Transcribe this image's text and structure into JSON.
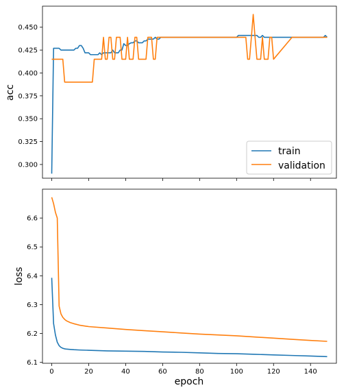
{
  "colors": {
    "train": "#1f77b4",
    "validation": "#ff7f0e"
  },
  "chart_data": [
    {
      "type": "line",
      "ylabel": "acc",
      "xlabel": "",
      "xlim": [
        -5,
        154
      ],
      "ylim": [
        0.285,
        0.473
      ],
      "yticks": [
        0.3,
        0.325,
        0.35,
        0.375,
        0.4,
        0.425,
        0.45
      ],
      "ytick_labels": [
        "0.300",
        "0.325",
        "0.350",
        "0.375",
        "0.400",
        "0.425",
        "0.450"
      ],
      "legend": {
        "position": "lower-right",
        "entries": [
          "train",
          "validation"
        ]
      },
      "series": [
        {
          "name": "train",
          "x": [
            0,
            1,
            2,
            3,
            4,
            5,
            6,
            7,
            8,
            9,
            10,
            11,
            12,
            13,
            14,
            15,
            16,
            17,
            18,
            19,
            20,
            21,
            22,
            23,
            24,
            25,
            26,
            27,
            28,
            29,
            30,
            31,
            32,
            33,
            34,
            35,
            36,
            37,
            38,
            39,
            40,
            41,
            42,
            43,
            44,
            45,
            46,
            47,
            48,
            49,
            50,
            51,
            52,
            53,
            54,
            55,
            56,
            57,
            58,
            59,
            60,
            70,
            80,
            90,
            100,
            101,
            102,
            103,
            104,
            105,
            106,
            107,
            108,
            109,
            110,
            111,
            112,
            113,
            114,
            115,
            116,
            117,
            118,
            119,
            120,
            130,
            140,
            147,
            148,
            149
          ],
          "y": [
            0.29,
            0.427,
            0.427,
            0.427,
            0.427,
            0.425,
            0.425,
            0.425,
            0.425,
            0.425,
            0.425,
            0.425,
            0.425,
            0.427,
            0.427,
            0.43,
            0.43,
            0.427,
            0.422,
            0.422,
            0.422,
            0.42,
            0.42,
            0.42,
            0.42,
            0.42,
            0.422,
            0.42,
            0.422,
            0.422,
            0.422,
            0.422,
            0.422,
            0.425,
            0.422,
            0.422,
            0.422,
            0.425,
            0.425,
            0.432,
            0.43,
            0.43,
            0.432,
            0.433,
            0.433,
            0.435,
            0.435,
            0.433,
            0.433,
            0.433,
            0.435,
            0.435,
            0.437,
            0.437,
            0.437,
            0.437,
            0.439,
            0.437,
            0.437,
            0.439,
            0.439,
            0.439,
            0.439,
            0.439,
            0.439,
            0.441,
            0.441,
            0.441,
            0.441,
            0.441,
            0.441,
            0.441,
            0.441,
            0.441,
            0.441,
            0.441,
            0.439,
            0.439,
            0.441,
            0.439,
            0.439,
            0.439,
            0.439,
            0.439,
            0.439,
            0.439,
            0.439,
            0.439,
            0.441,
            0.439
          ]
        },
        {
          "name": "validation",
          "x": [
            0,
            1,
            2,
            3,
            4,
            5,
            6,
            7,
            8,
            9,
            10,
            11,
            12,
            13,
            14,
            15,
            16,
            17,
            18,
            19,
            20,
            21,
            22,
            23,
            24,
            25,
            26,
            27,
            28,
            29,
            30,
            31,
            32,
            33,
            34,
            35,
            36,
            37,
            38,
            39,
            40,
            41,
            42,
            43,
            44,
            45,
            46,
            47,
            48,
            49,
            50,
            51,
            52,
            53,
            54,
            55,
            56,
            57,
            58,
            59,
            60,
            70,
            80,
            90,
            100,
            101,
            102,
            103,
            104,
            105,
            106,
            107,
            108,
            109,
            110,
            111,
            112,
            113,
            114,
            115,
            116,
            117,
            118,
            119,
            120,
            130,
            140,
            147,
            148,
            149
          ],
          "y": [
            0.415,
            0.415,
            0.415,
            0.415,
            0.415,
            0.415,
            0.415,
            0.39,
            0.39,
            0.39,
            0.39,
            0.39,
            0.39,
            0.39,
            0.39,
            0.39,
            0.39,
            0.39,
            0.39,
            0.39,
            0.39,
            0.39,
            0.39,
            0.415,
            0.415,
            0.415,
            0.415,
            0.415,
            0.439,
            0.415,
            0.415,
            0.439,
            0.439,
            0.415,
            0.415,
            0.439,
            0.439,
            0.439,
            0.415,
            0.415,
            0.415,
            0.439,
            0.415,
            0.415,
            0.415,
            0.439,
            0.439,
            0.415,
            0.415,
            0.415,
            0.415,
            0.415,
            0.439,
            0.439,
            0.439,
            0.415,
            0.415,
            0.439,
            0.439,
            0.439,
            0.439,
            0.439,
            0.439,
            0.439,
            0.439,
            0.439,
            0.439,
            0.439,
            0.439,
            0.439,
            0.415,
            0.415,
            0.439,
            0.464,
            0.439,
            0.415,
            0.415,
            0.415,
            0.439,
            0.415,
            0.415,
            0.415,
            0.439,
            0.439,
            0.415,
            0.439,
            0.439,
            0.439,
            0.439,
            0.439
          ]
        }
      ]
    },
    {
      "type": "line",
      "ylabel": "loss",
      "xlabel": "epoch",
      "xlim": [
        -5,
        154
      ],
      "ylim": [
        6.097,
        6.7
      ],
      "xticks": [
        0,
        20,
        40,
        60,
        80,
        100,
        120,
        140
      ],
      "xtick_labels": [
        "0",
        "20",
        "40",
        "60",
        "80",
        "100",
        "120",
        "140"
      ],
      "yticks": [
        6.1,
        6.2,
        6.3,
        6.4,
        6.5,
        6.6
      ],
      "ytick_labels": [
        "6.1",
        "6.2",
        "6.3",
        "6.4",
        "6.5",
        "6.6"
      ],
      "series": [
        {
          "name": "train",
          "x": [
            0,
            1,
            2,
            3,
            4,
            5,
            6,
            7,
            8,
            10,
            12,
            15,
            20,
            30,
            40,
            50,
            60,
            70,
            80,
            90,
            100,
            110,
            120,
            130,
            140,
            149
          ],
          "y": [
            6.393,
            6.235,
            6.195,
            6.17,
            6.158,
            6.152,
            6.149,
            6.147,
            6.146,
            6.145,
            6.144,
            6.143,
            6.142,
            6.14,
            6.139,
            6.138,
            6.136,
            6.135,
            6.133,
            6.131,
            6.13,
            6.128,
            6.126,
            6.124,
            6.122,
            6.12
          ]
        },
        {
          "name": "validation",
          "x": [
            0,
            1,
            2,
            3,
            4,
            5,
            6,
            7,
            8,
            10,
            12,
            15,
            20,
            30,
            40,
            50,
            60,
            70,
            80,
            90,
            100,
            110,
            120,
            130,
            140,
            149
          ],
          "y": [
            6.672,
            6.65,
            6.62,
            6.6,
            6.295,
            6.268,
            6.256,
            6.249,
            6.244,
            6.238,
            6.234,
            6.229,
            6.224,
            6.219,
            6.214,
            6.21,
            6.206,
            6.202,
            6.198,
            6.195,
            6.192,
            6.188,
            6.184,
            6.18,
            6.176,
            6.173
          ]
        }
      ]
    }
  ]
}
